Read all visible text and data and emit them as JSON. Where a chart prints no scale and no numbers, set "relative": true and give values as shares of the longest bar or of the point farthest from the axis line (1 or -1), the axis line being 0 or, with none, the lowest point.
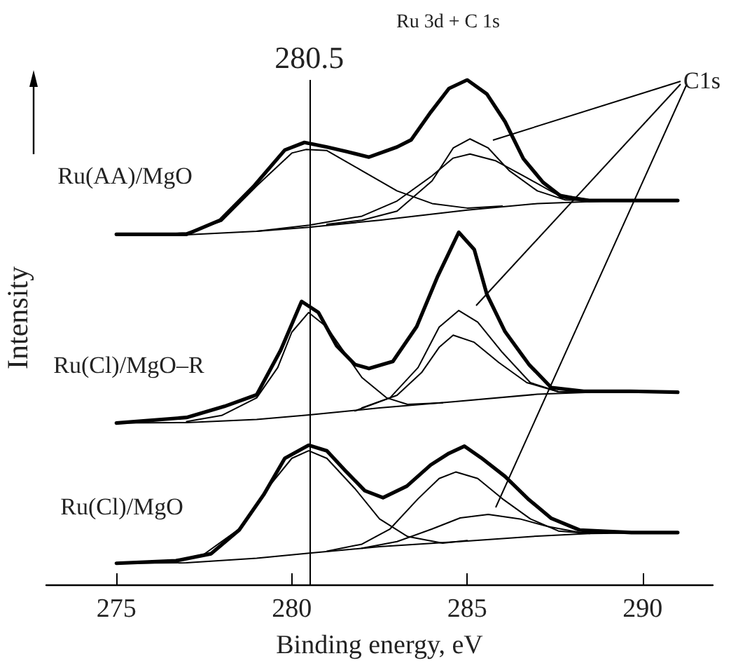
{
  "chart_data": {
    "type": "line",
    "title": "Ru 3d + C 1s",
    "xlabel": "Binding energy, eV",
    "ylabel": "Intensity",
    "relative": true,
    "xlim": [
      273,
      292
    ],
    "xticks": [
      275,
      280,
      285,
      290
    ],
    "grid": false,
    "legend": false,
    "marker": "none",
    "annotations": [
      "C1s"
    ],
    "ref_lines": [
      {
        "axis": "x",
        "value": 280.5,
        "label": "280.5",
        "color": "#000000"
      }
    ],
    "series": [
      {
        "name": "Ru(AA)/MgO",
        "color": "#000000",
        "x": [
          275,
          277,
          277.96,
          278.9,
          279.8,
          280.36,
          281,
          281.56,
          282.2,
          283,
          283.4,
          283.96,
          284.48,
          285,
          285.56,
          286.08,
          286.6,
          287.16,
          287.68,
          288.48,
          289.68,
          291
        ],
        "values": [
          0.694,
          0.694,
          0.722,
          0.788,
          0.861,
          0.876,
          0.867,
          0.858,
          0.847,
          0.867,
          0.881,
          0.936,
          0.983,
          1.0,
          0.972,
          0.917,
          0.844,
          0.797,
          0.769,
          0.761,
          0.761,
          0.761
        ]
      },
      {
        "color": "#000000",
        "x": [
          275,
          277,
          279,
          280.5,
          282.5,
          285,
          287,
          289,
          291
        ],
        "values": [
          0.692,
          0.693,
          0.7,
          0.708,
          0.722,
          0.742,
          0.755,
          0.76,
          0.76
        ]
      },
      {
        "color": "#000000",
        "x": [
          276,
          277,
          278,
          279,
          280,
          280.4,
          281,
          282,
          283,
          284,
          285,
          286
        ],
        "values": [
          0.693,
          0.697,
          0.72,
          0.79,
          0.855,
          0.862,
          0.86,
          0.82,
          0.78,
          0.755,
          0.746,
          0.75
        ]
      },
      {
        "color": "#000000",
        "x": [
          281,
          282,
          283,
          284,
          284.6,
          285.08,
          285.6,
          286.2,
          287,
          287.8,
          289
        ],
        "values": [
          0.714,
          0.722,
          0.74,
          0.8,
          0.865,
          0.883,
          0.865,
          0.82,
          0.78,
          0.762,
          0.76
        ]
      },
      {
        "color": "#000000",
        "x": [
          279,
          280.5,
          282,
          283,
          284,
          284.6,
          285.08,
          285.8,
          286.6,
          287.5,
          288.5,
          290
        ],
        "values": [
          0.7,
          0.712,
          0.73,
          0.76,
          0.81,
          0.845,
          0.853,
          0.84,
          0.81,
          0.775,
          0.762,
          0.76
        ]
      },
      {
        "name": "Ru(Cl)/MgO–R",
        "color": "#000000",
        "x": [
          275,
          277,
          278.08,
          279,
          279.68,
          280.28,
          280.76,
          281.28,
          281.8,
          282.2,
          282.88,
          283.56,
          284.16,
          284.76,
          285.2,
          285.56,
          286.08,
          286.76,
          287.4,
          288.32,
          289.65,
          291
        ],
        "values": [
          0.32,
          0.331,
          0.353,
          0.376,
          0.464,
          0.561,
          0.539,
          0.473,
          0.436,
          0.428,
          0.442,
          0.511,
          0.611,
          0.698,
          0.664,
          0.575,
          0.501,
          0.436,
          0.39,
          0.383,
          0.383,
          0.381
        ]
      },
      {
        "color": "#000000",
        "x": [
          275,
          277,
          279,
          280.5,
          282.5,
          284.6,
          287,
          288.5,
          291
        ],
        "values": [
          0.32,
          0.321,
          0.327,
          0.336,
          0.35,
          0.362,
          0.377,
          0.381,
          0.381
        ]
      },
      {
        "color": "#000000",
        "x": [
          277,
          278,
          279,
          279.6,
          280,
          280.48,
          281,
          281.5,
          282,
          282.7,
          283.3,
          284.3
        ],
        "values": [
          0.323,
          0.335,
          0.37,
          0.43,
          0.5,
          0.539,
          0.51,
          0.46,
          0.41,
          0.37,
          0.357,
          0.36
        ]
      },
      {
        "color": "#000000",
        "x": [
          281.8,
          282.8,
          283.6,
          284.2,
          284.76,
          285.3,
          286,
          286.8,
          287.6,
          288.5
        ],
        "values": [
          0.344,
          0.37,
          0.43,
          0.51,
          0.543,
          0.52,
          0.46,
          0.4,
          0.382,
          0.381
        ]
      },
      {
        "color": "#000000",
        "x": [
          282,
          283,
          283.7,
          284.2,
          284.6,
          285.2,
          285.9,
          286.7,
          287.6,
          288.5
        ],
        "values": [
          0.35,
          0.375,
          0.42,
          0.47,
          0.494,
          0.48,
          0.44,
          0.4,
          0.382,
          0.381
        ]
      },
      {
        "name": "Ru(Cl)/MgO",
        "color": "#000000",
        "x": [
          275,
          276.7,
          277.7,
          278.5,
          279.2,
          279.8,
          280.48,
          281,
          281.56,
          282.08,
          282.6,
          283.28,
          283.96,
          284.48,
          284.92,
          285.4,
          286.08,
          286.76,
          287.4,
          288.2,
          289.68,
          291
        ],
        "values": [
          0.042,
          0.047,
          0.061,
          0.108,
          0.178,
          0.25,
          0.276,
          0.265,
          0.223,
          0.186,
          0.172,
          0.195,
          0.237,
          0.26,
          0.274,
          0.251,
          0.214,
          0.168,
          0.131,
          0.108,
          0.103,
          0.103
        ]
      },
      {
        "color": "#000000",
        "x": [
          275,
          277,
          279,
          280.5,
          282.5,
          285,
          287,
          288.5,
          291
        ],
        "values": [
          0.042,
          0.043,
          0.052,
          0.062,
          0.075,
          0.086,
          0.096,
          0.101,
          0.103
        ]
      },
      {
        "color": "#000000",
        "x": [
          276.5,
          277.5,
          278.5,
          279.3,
          280,
          280.48,
          281,
          281.8,
          282.5,
          283.3,
          284.3,
          285
        ],
        "values": [
          0.044,
          0.06,
          0.11,
          0.19,
          0.25,
          0.265,
          0.25,
          0.19,
          0.13,
          0.095,
          0.082,
          0.087
        ]
      },
      {
        "color": "#000000",
        "x": [
          281,
          282,
          282.8,
          283.6,
          284.2,
          284.68,
          285.3,
          286,
          286.8,
          287.6,
          288.5
        ],
        "values": [
          0.066,
          0.08,
          0.11,
          0.17,
          0.21,
          0.223,
          0.21,
          0.17,
          0.13,
          0.106,
          0.101
        ]
      },
      {
        "color": "#000000",
        "x": [
          282,
          283,
          284,
          284.8,
          285.6,
          286.5,
          287.3,
          288.2,
          289
        ],
        "values": [
          0.072,
          0.085,
          0.11,
          0.132,
          0.139,
          0.13,
          0.115,
          0.103,
          0.102
        ]
      }
    ]
  }
}
